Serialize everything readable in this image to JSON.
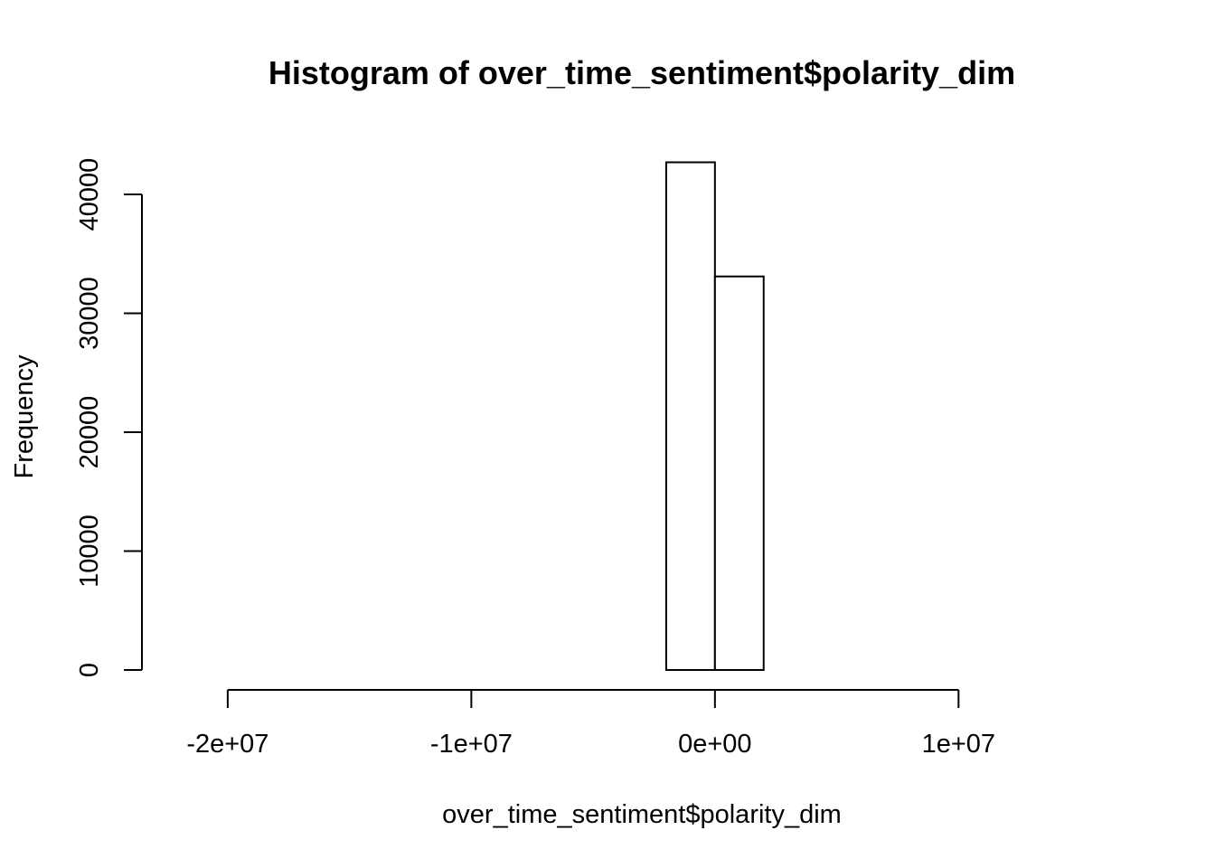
{
  "chart_data": {
    "type": "bar",
    "title": "Histogram of over_time_sentiment$polarity_dim",
    "xlabel": "over_time_sentiment$polarity_dim",
    "ylabel": "Frequency",
    "bin_width": 2000000,
    "bins": [
      {
        "start": -22000000,
        "end": -20000000,
        "count": 0
      },
      {
        "start": -20000000,
        "end": -18000000,
        "count": 0
      },
      {
        "start": -18000000,
        "end": -16000000,
        "count": 0
      },
      {
        "start": -16000000,
        "end": -14000000,
        "count": 0
      },
      {
        "start": -14000000,
        "end": -12000000,
        "count": 0
      },
      {
        "start": -12000000,
        "end": -10000000,
        "count": 0
      },
      {
        "start": -10000000,
        "end": -8000000,
        "count": 0
      },
      {
        "start": -8000000,
        "end": -6000000,
        "count": 0
      },
      {
        "start": -6000000,
        "end": -4000000,
        "count": 0
      },
      {
        "start": -4000000,
        "end": -2000000,
        "count": 0
      },
      {
        "start": -2000000,
        "end": 0,
        "count": 42700
      },
      {
        "start": 0,
        "end": 2000000,
        "count": 33100
      },
      {
        "start": 2000000,
        "end": 4000000,
        "count": 0
      },
      {
        "start": 4000000,
        "end": 6000000,
        "count": 0
      },
      {
        "start": 6000000,
        "end": 8000000,
        "count": 0
      },
      {
        "start": 8000000,
        "end": 10000000,
        "count": 0
      },
      {
        "start": 10000000,
        "end": 12000000,
        "count": 0
      },
      {
        "start": 12000000,
        "end": 14000000,
        "count": 0
      },
      {
        "start": 14000000,
        "end": 16000000,
        "count": 0
      }
    ],
    "xlim": [
      -22000000,
      16000000
    ],
    "ylim": [
      0,
      40000
    ],
    "x_ticks": [
      {
        "value": -20000000,
        "label": "-2e+07"
      },
      {
        "value": -10000000,
        "label": "-1e+07"
      },
      {
        "value": 0,
        "label": "0e+00"
      },
      {
        "value": 10000000,
        "label": "1e+07"
      }
    ],
    "y_ticks": [
      {
        "value": 0,
        "label": "0"
      },
      {
        "value": 10000,
        "label": "10000"
      },
      {
        "value": 20000,
        "label": "20000"
      },
      {
        "value": 30000,
        "label": "30000"
      },
      {
        "value": 40000,
        "label": "40000"
      }
    ],
    "grid": false,
    "legend": "none",
    "colors": {
      "bar_fill": "#ffffff",
      "bar_stroke": "#000000",
      "background": "#ffffff"
    }
  }
}
